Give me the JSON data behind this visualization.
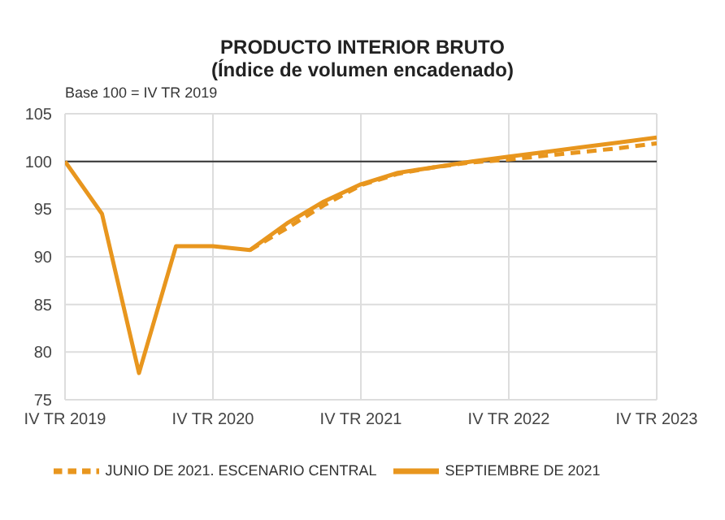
{
  "chart_data": {
    "type": "line",
    "title": "PRODUCTO INTERIOR BRUTO",
    "subtitle": "(Índice de volumen encadenado)",
    "annotations": [
      "Base 100 = IV TR 2019"
    ],
    "categories": [
      "IV TR 2019",
      null,
      null,
      null,
      "IV TR 2020",
      null,
      null,
      null,
      "IV TR 2021",
      null,
      null,
      null,
      "IV TR 2022",
      null,
      null,
      null,
      "IV TR 2023"
    ],
    "series": [
      {
        "name": "SEPTIEMBRE DE 2021",
        "color": "#e8961e",
        "line_style": "solid",
        "values": [
          100,
          94.5,
          77.8,
          91.1,
          91.1,
          90.7,
          93.5,
          95.8,
          97.6,
          98.8,
          99.4,
          100.0,
          100.5,
          101.0,
          101.5,
          102.0,
          102.5
        ]
      },
      {
        "name": "JUNIO DE 2021. ESCENARIO CENTRAL",
        "color": "#e8961e",
        "line_style": "dashed",
        "values": [
          null,
          null,
          null,
          null,
          null,
          90.7,
          93.0,
          95.4,
          97.5,
          98.7,
          99.4,
          99.9,
          100.2,
          100.6,
          101.0,
          101.4,
          101.9
        ]
      }
    ],
    "ylim": [
      75,
      105
    ],
    "yticks": [
      75,
      80,
      85,
      90,
      95,
      100,
      105
    ],
    "grid": true,
    "legend": "bottom",
    "marker": "none",
    "ref_lines": [
      {
        "axis": "y",
        "value": 100,
        "color": "#333333"
      }
    ]
  }
}
